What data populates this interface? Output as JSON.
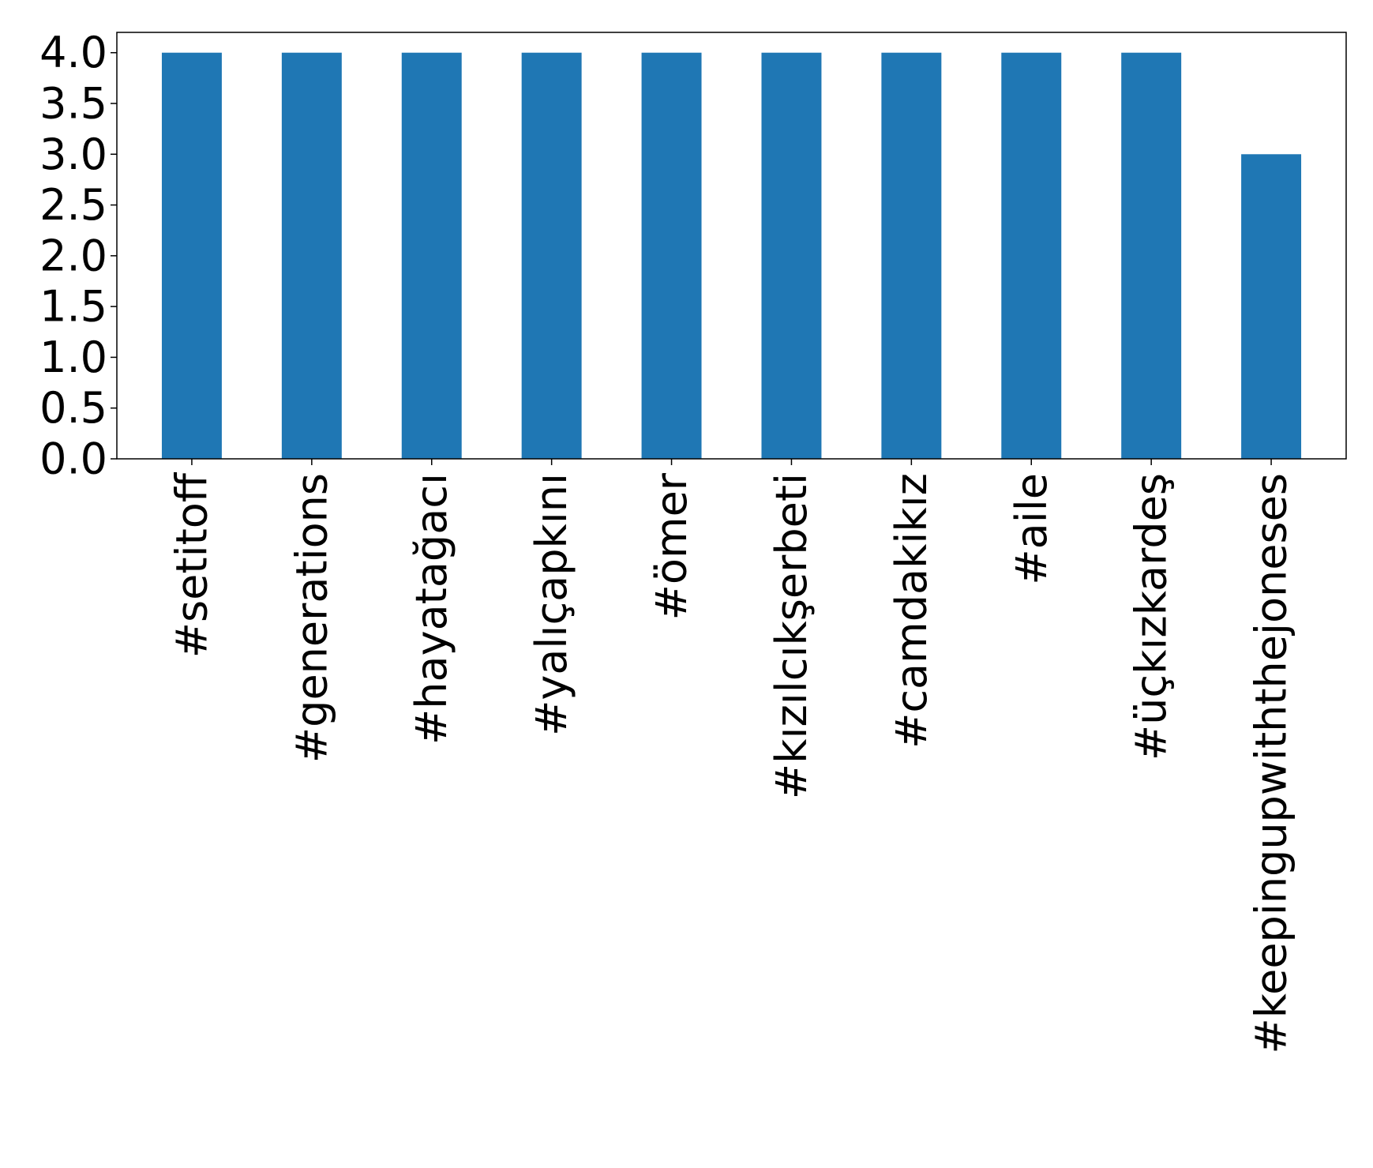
{
  "chart_data": {
    "type": "bar",
    "categories": [
      "#setitoff",
      "#generations",
      "#hayatağacı",
      "#yalıçapkını",
      "#ömer",
      "#kızılcıkşerbeti",
      "#camdakikız",
      "#aile",
      "#üçkızkardeş",
      "#keepingupwiththejoneses"
    ],
    "values": [
      4,
      4,
      4,
      4,
      4,
      4,
      4,
      4,
      4,
      3
    ],
    "title": "",
    "xlabel": "",
    "ylabel": "",
    "ylim": [
      0,
      4.2
    ],
    "yticks": [
      "0.0",
      "0.5",
      "1.0",
      "1.5",
      "2.0",
      "2.5",
      "3.0",
      "3.5",
      "4.0"
    ],
    "grid": false,
    "bar_color": "#1f77b4"
  }
}
